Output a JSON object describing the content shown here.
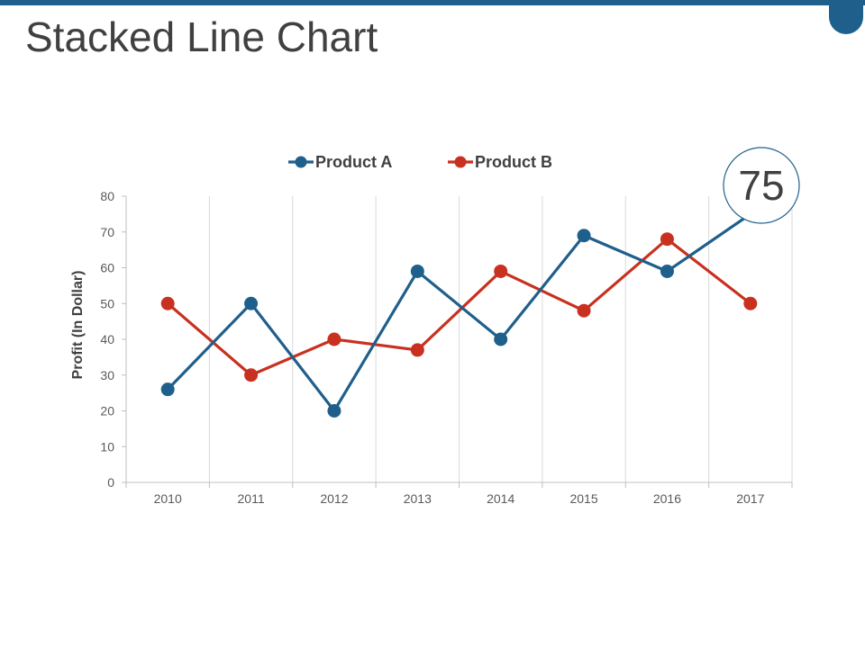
{
  "page": {
    "title": "Stacked Line Chart",
    "accent_color": "#1f5f8b"
  },
  "callout": {
    "value": "75"
  },
  "chart_data": {
    "type": "line",
    "title": "",
    "xlabel": "",
    "ylabel": "Profit (In Dollar)",
    "ylim": [
      0,
      80
    ],
    "yticks": [
      0,
      10,
      20,
      30,
      40,
      50,
      60,
      70,
      80
    ],
    "categories": [
      "2010",
      "2011",
      "2012",
      "2013",
      "2014",
      "2015",
      "2016",
      "2017"
    ],
    "legend_position": "top",
    "grid": "vertical",
    "series": [
      {
        "name": "Product A",
        "color": "#1f5f8b",
        "values": [
          26,
          50,
          20,
          59,
          40,
          69,
          59,
          75
        ]
      },
      {
        "name": "Product B",
        "color": "#c8311f",
        "values": [
          50,
          30,
          40,
          37,
          59,
          48,
          68,
          50
        ]
      }
    ]
  }
}
